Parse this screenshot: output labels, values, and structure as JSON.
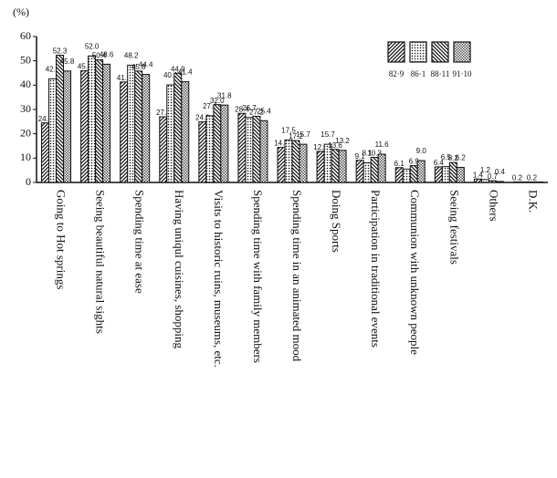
{
  "chart_data": {
    "type": "bar",
    "y_label": "(%)",
    "categories": [
      "Going to Hot springs",
      "Seeing beautiful natural sights",
      "Spending time at ease",
      "Having uniqul cuisines, shopping",
      "Visits to historic ruins, museums, etc.",
      "Spending time with family members",
      "Spending time in an animated mood",
      "Doing Sports",
      "Participation in traditional events",
      "Communion with unknown people",
      "Seeing festivals",
      "Others",
      "D.K."
    ],
    "series": [
      {
        "name": "82·9",
        "color": "#111111",
        "pattern": "hatch",
        "values": [
          24.5,
          45.9,
          41.3,
          27.0,
          24.9,
          28.4,
          14.4,
          12.8,
          9.1,
          6.1,
          6.4,
          1.4,
          0.2
        ],
        "value_labels": [
          "24.5",
          "45.9",
          "41.3",
          "27.0",
          "24.9",
          "28.4",
          "14.4",
          "12.8",
          "9.1",
          "6.1",
          "6.4",
          "1.4",
          "0.2"
        ]
      },
      {
        "name": "86·1",
        "color": "#111111",
        "pattern": "dots",
        "values": [
          42.6,
          52.0,
          48.2,
          40.1,
          27.4,
          26.7,
          17.5,
          15.7,
          8.1,
          5.5,
          6.5,
          1.2,
          0.2
        ],
        "value_labels": [
          "42.6",
          "52.0",
          "48.2",
          "40.1",
          "27.4",
          "26.7",
          "17.5",
          "15.7",
          "8.1",
          null,
          "6.5",
          "1.2",
          null
        ]
      },
      {
        "name": "88·11",
        "color": "#111111",
        "pattern": "backhatch",
        "values": [
          52.3,
          50.4,
          45.8,
          44.9,
          32.0,
          27.2,
          17.2,
          13.6,
          10.3,
          6.9,
          8.2,
          0.7,
          0.2
        ],
        "value_labels": [
          "52.3",
          "50.4",
          "45.8",
          "44.9",
          "32.0",
          "27.2",
          "17.2",
          "13.6",
          "10.3",
          "6.9",
          "8.2",
          "0.7",
          "0.2"
        ]
      },
      {
        "name": "91·10",
        "color": "#111111",
        "pattern": "cross",
        "values": [
          45.8,
          48.6,
          44.4,
          41.4,
          31.8,
          25.4,
          15.7,
          13.2,
          11.6,
          9.0,
          6.2,
          0.4,
          0.2
        ],
        "value_labels": [
          "45.8",
          "48.6",
          "44.4",
          "41.4",
          "31.8",
          "25.4",
          "15.7",
          "13.2",
          "11.6",
          "9.0",
          "6.2",
          "0.4",
          null
        ]
      }
    ],
    "ylim": [
      0,
      60
    ],
    "yticks": [
      0,
      10,
      20,
      30,
      40,
      50,
      60
    ],
    "grid": false
  }
}
